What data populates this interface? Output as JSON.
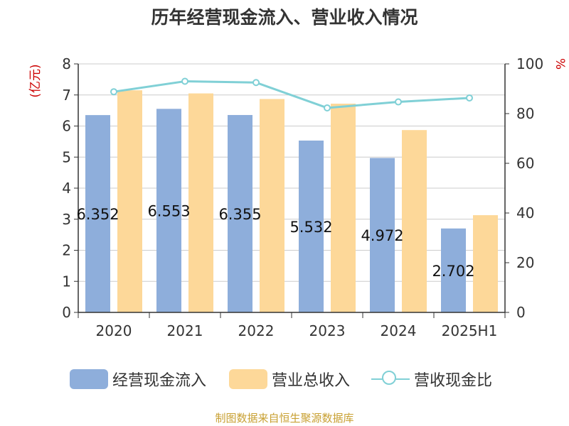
{
  "chart_data": {
    "type": "bar",
    "title": "历年经营现金流入、营业收入情况",
    "categories": [
      "2020",
      "2021",
      "2022",
      "2023",
      "2024",
      "2025H1"
    ],
    "y_left": {
      "label": "(亿元)",
      "ylim": [
        0,
        8
      ],
      "ticks": [
        "0",
        "1",
        "2",
        "3",
        "4",
        "5",
        "6",
        "7",
        "8"
      ]
    },
    "y_right": {
      "label": "%",
      "ylim": [
        0,
        100
      ],
      "ticks": [
        "0",
        "20",
        "40",
        "60",
        "80",
        "100"
      ]
    },
    "grid": true,
    "legend_position": "bottom",
    "series": [
      {
        "name": "经营现金流入",
        "type": "bar",
        "axis": "left",
        "color": "#8eaedb",
        "values": [
          6.352,
          6.553,
          6.355,
          5.532,
          4.972,
          2.702
        ],
        "labels": [
          "6.352",
          "6.553",
          "6.355",
          "5.532",
          "4.972",
          "2.702"
        ]
      },
      {
        "name": "营业总收入",
        "type": "bar",
        "axis": "left",
        "color": "#fdd899",
        "values": [
          7.15,
          7.05,
          6.87,
          6.72,
          5.87,
          3.13
        ]
      },
      {
        "name": "营收现金比",
        "type": "line",
        "axis": "right",
        "color": "#80d0d6",
        "values": [
          88.8,
          93.0,
          92.5,
          82.3,
          84.7,
          86.3
        ]
      }
    ]
  },
  "source": "制图数据来自恒生聚源数据库"
}
